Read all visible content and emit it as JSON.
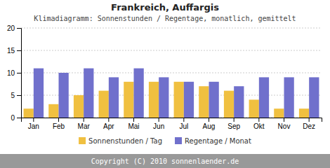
{
  "chart_data": {
    "type": "bar",
    "title": "Frankreich, Auffargis",
    "subtitle": "Klimadiagramm: Sonnenstunden / Regentage, monatlich, gemittelt",
    "categories": [
      "Jan",
      "Feb",
      "Mar",
      "Apr",
      "Mai",
      "Jun",
      "Jul",
      "Aug",
      "Sep",
      "Okt",
      "Nov",
      "Dez"
    ],
    "series": [
      {
        "name": "Sonnenstunden / Tag",
        "color": "#f0c040",
        "values": [
          2,
          3,
          5,
          6,
          8,
          8,
          8,
          7,
          6,
          4,
          2,
          2
        ]
      },
      {
        "name": "Regentage / Monat",
        "color": "#7070cc",
        "values": [
          11,
          10,
          11,
          9,
          11,
          9,
          8,
          8,
          7,
          9,
          9,
          9
        ]
      }
    ],
    "ylim": [
      0,
      20
    ],
    "yticks": [
      0,
      5,
      10,
      15,
      20
    ],
    "grid": true,
    "legend": "bottom",
    "annotations": [
      "Copyright (C) 2010 sonnenlaender.de"
    ]
  }
}
